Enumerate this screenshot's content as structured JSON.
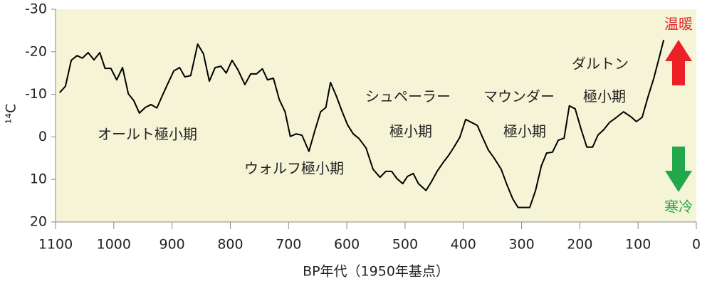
{
  "chart_data": {
    "type": "line",
    "x_label": "BP年代（1950年基点）",
    "y_label": "¹⁴C",
    "x": [
      1093,
      1083,
      1073,
      1063,
      1054,
      1044,
      1034,
      1024,
      1015,
      1005,
      995,
      985,
      975,
      966,
      956,
      946,
      936,
      926,
      917,
      907,
      897,
      887,
      878,
      868,
      856,
      846,
      836,
      826,
      816,
      807,
      797,
      787,
      775,
      765,
      755,
      745,
      736,
      726,
      716,
      706,
      697,
      687,
      677,
      665,
      655,
      645,
      636,
      628,
      618,
      609,
      599,
      589,
      579,
      567,
      555,
      543,
      533,
      523,
      514,
      504,
      496,
      486,
      477,
      464,
      455,
      445,
      435,
      425,
      416,
      406,
      396,
      386,
      376,
      367,
      357,
      347,
      335,
      325,
      315,
      306,
      296,
      286,
      276,
      266,
      257,
      247,
      237,
      227,
      218,
      208,
      198,
      188,
      178,
      169,
      159,
      149,
      137,
      125,
      112,
      103,
      93,
      83,
      73,
      64,
      56
    ],
    "series": [
      {
        "color": "#000000",
        "values": [
          -10.4,
          -11.9,
          -18.0,
          -19.1,
          -18.5,
          -19.8,
          -18.1,
          -19.8,
          -16.1,
          -16.1,
          -13.4,
          -16.3,
          -10.1,
          -8.6,
          -5.6,
          -6.9,
          -7.6,
          -6.8,
          -9.6,
          -12.6,
          -15.5,
          -16.3,
          -14.1,
          -14.4,
          -21.8,
          -19.5,
          -13.1,
          -16.3,
          -16.6,
          -15.0,
          -18.0,
          -15.8,
          -12.3,
          -14.8,
          -14.8,
          -16.0,
          -13.4,
          -13.8,
          -8.8,
          -5.9,
          -0.1,
          -0.7,
          -0.4,
          3.4,
          -1.4,
          -5.9,
          -6.9,
          -12.8,
          -9.6,
          -6.3,
          -2.9,
          -0.7,
          0.4,
          2.6,
          7.6,
          9.5,
          8.1,
          8.1,
          9.8,
          11.0,
          9.3,
          8.6,
          11.0,
          12.6,
          10.6,
          8.1,
          6.1,
          4.3,
          2.4,
          0.1,
          -4.1,
          -3.4,
          -2.7,
          0.1,
          3.1,
          5.0,
          7.6,
          11.3,
          14.6,
          16.6,
          16.6,
          16.6,
          12.6,
          6.8,
          3.8,
          3.6,
          0.8,
          0.3,
          -7.3,
          -6.6,
          -1.9,
          2.4,
          2.4,
          -0.4,
          -1.7,
          -3.4,
          -4.6,
          -5.9,
          -4.7,
          -3.6,
          -4.6,
          -9.4,
          -13.8,
          -18.5,
          -22.8
        ]
      }
    ],
    "xlim": [
      1100,
      0
    ],
    "xticks": [
      1100,
      1000,
      900,
      800,
      700,
      600,
      500,
      400,
      300,
      200,
      100,
      0
    ],
    "ylim": [
      20,
      -30
    ],
    "yticks": [
      -30,
      -20,
      -10,
      0,
      10,
      20
    ],
    "annotations": [
      "オールト極小期",
      "ウォルフ極小期",
      "シュペーラー",
      "極小期",
      "マウンダー",
      "極小期",
      "ダルトン",
      "極小期"
    ],
    "warm_label": "温暖",
    "cold_label": "寒冷",
    "background": "#f6f4d6"
  }
}
